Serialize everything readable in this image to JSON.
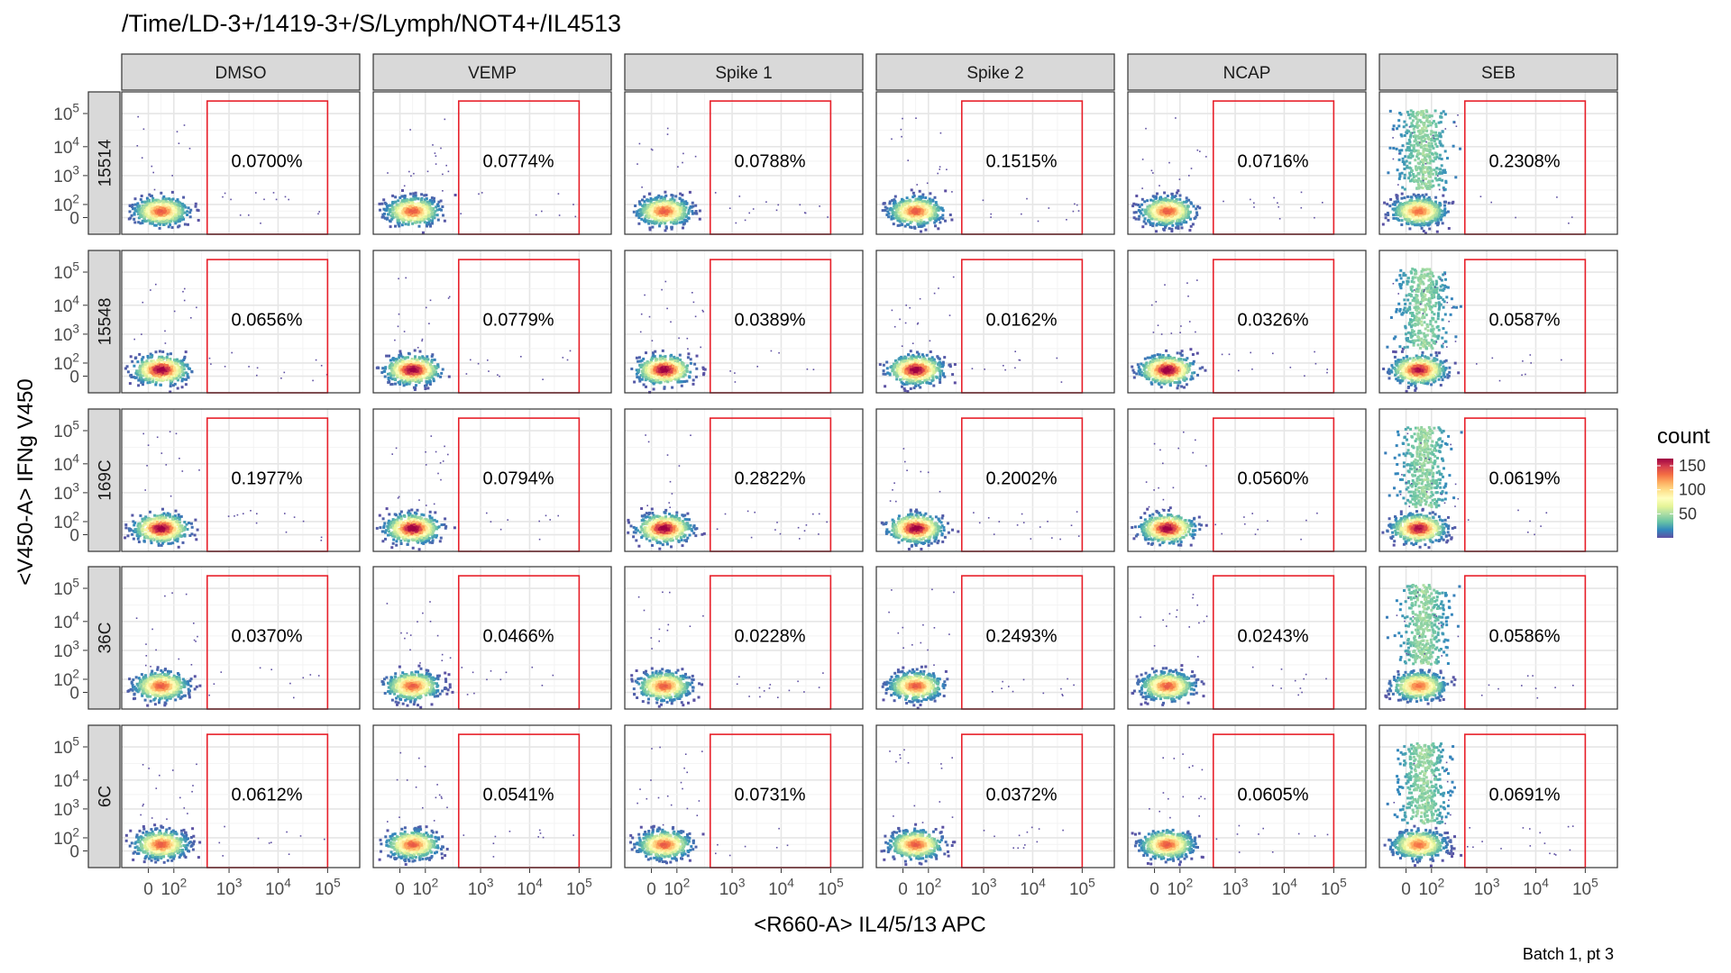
{
  "chart_data": {
    "type": "heatmap",
    "title": "/Time/LD-3+/1419-3+/S/Lymph/NOT4+/IL4513",
    "xlabel": "<R660-A> IL4/5/13 APC",
    "ylabel": "<V450-A> IFNg V450",
    "caption": "Batch 1, pt 3",
    "x_ticks": [
      {
        "m": "0",
        "e": ""
      },
      {
        "m": "10",
        "e": "2"
      },
      {
        "m": "10",
        "e": "3"
      },
      {
        "m": "10",
        "e": "4"
      },
      {
        "m": "10",
        "e": "5"
      }
    ],
    "y_ticks": [
      {
        "m": "0",
        "e": ""
      },
      {
        "m": "10",
        "e": "2"
      },
      {
        "m": "10",
        "e": "3"
      },
      {
        "m": "10",
        "e": "4"
      },
      {
        "m": "10",
        "e": "5"
      }
    ],
    "columns": [
      "DMSO",
      "VEMP",
      "Spike 1",
      "Spike 2",
      "NCAP",
      "SEB"
    ],
    "rows": [
      "15514",
      "15548",
      "169C",
      "36C",
      "6C"
    ],
    "gate_percentages": [
      [
        "0.0700%",
        "0.0774%",
        "0.0788%",
        "0.1515%",
        "0.0716%",
        "0.2308%"
      ],
      [
        "0.0656%",
        "0.0779%",
        "0.0389%",
        "0.0162%",
        "0.0326%",
        "0.0587%"
      ],
      [
        "0.1977%",
        "0.0794%",
        "0.2822%",
        "0.2002%",
        "0.0560%",
        "0.0619%"
      ],
      [
        "0.0370%",
        "0.0466%",
        "0.0228%",
        "0.2493%",
        "0.0243%",
        "0.0586%"
      ],
      [
        "0.0612%",
        "0.0541%",
        "0.0731%",
        "0.0372%",
        "0.0605%",
        "0.0691%"
      ]
    ],
    "gate_color": "#e8202a",
    "legend": {
      "title": "count",
      "ticks": [
        "150",
        "100",
        "50"
      ],
      "tick_values": [
        150,
        100,
        50
      ],
      "max": 165,
      "colors": [
        "#9e0142",
        "#d53e4f",
        "#f46d43",
        "#fdae61",
        "#fee08b",
        "#ffffbf",
        "#e6f598",
        "#abdda4",
        "#66c2a5",
        "#3288bd",
        "#5e4fa2"
      ],
      "position": "right"
    },
    "grid": true,
    "facet_strip_fill": "#d9d9d9"
  }
}
